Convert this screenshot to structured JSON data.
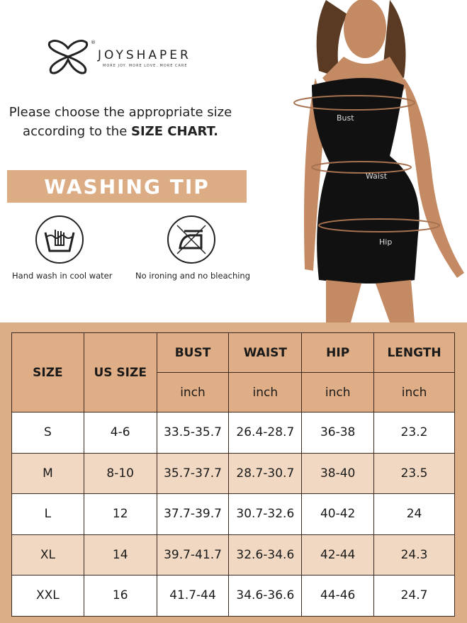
{
  "brand": {
    "name": "JOYSHAPER",
    "tagline": "MORE JOY. MORE LOVE. MORE CARE",
    "registered": "®"
  },
  "intro": {
    "text": "Please choose the appropriate size according to the ",
    "emphasis": "SIZE CHART."
  },
  "washing": {
    "title": "WASHING TIP",
    "tips": [
      {
        "icon": "hand-wash-icon",
        "label": "Hand wash in cool water"
      },
      {
        "icon": "no-ironing-icon",
        "label": "No ironing and no bleaching"
      }
    ]
  },
  "model": {
    "measurements": [
      "Bust",
      "Waist",
      "Hip"
    ]
  },
  "colors": {
    "accent": "#dcae88",
    "row_alt": "#f0d8c2"
  },
  "size_chart": {
    "headers": [
      "SIZE",
      "US SIZE",
      "BUST",
      "WAIST",
      "HIP",
      "LENGTH"
    ],
    "units": [
      "inch",
      "inch",
      "inch",
      "inch"
    ],
    "rows": [
      [
        "S",
        "4-6",
        "33.5-35.7",
        "26.4-28.7",
        "36-38",
        "23.2"
      ],
      [
        "M",
        "8-10",
        "35.7-37.7",
        "28.7-30.7",
        "38-40",
        "23.5"
      ],
      [
        "L",
        "12",
        "37.7-39.7",
        "30.7-32.6",
        "40-42",
        "24"
      ],
      [
        "XL",
        "14",
        "39.7-41.7",
        "32.6-34.6",
        "42-44",
        "24.3"
      ],
      [
        "XXL",
        "16",
        "41.7-44",
        "34.6-36.6",
        "44-46",
        "24.7"
      ]
    ]
  }
}
